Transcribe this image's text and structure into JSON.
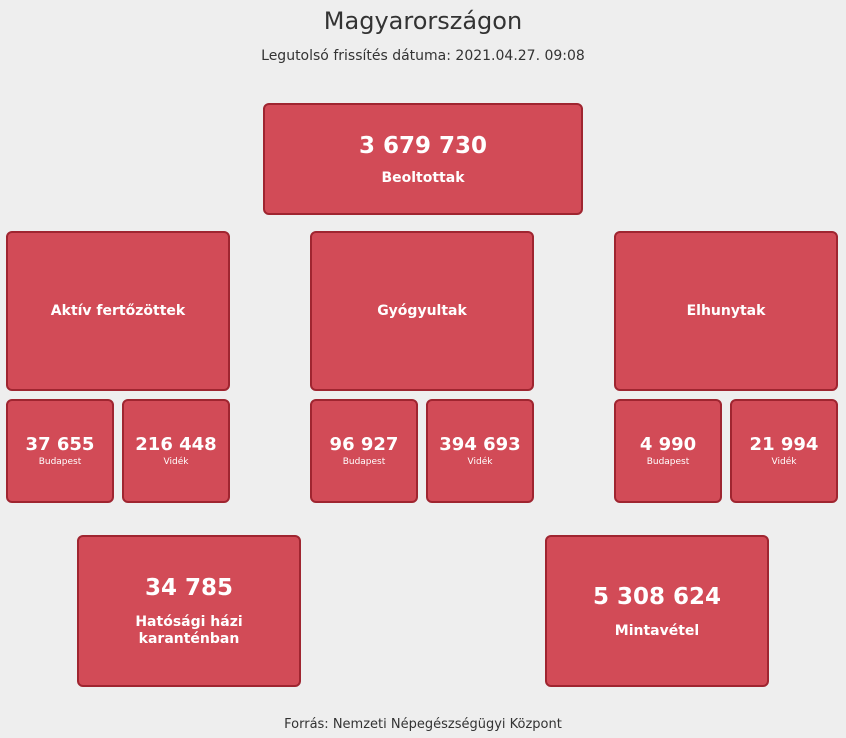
{
  "header": {
    "title": "Magyarországon",
    "updated": "Legutolsó frissítés dátuma: 2021.04.27. 09:08"
  },
  "vaccinated": {
    "value": "3 679 730",
    "label": "Beoltottak"
  },
  "categories": [
    {
      "label": "Aktív fertőzöttek",
      "budapest": {
        "value": "37 655",
        "label": "Budapest"
      },
      "countryside": {
        "value": "216 448",
        "label": "Vidék"
      }
    },
    {
      "label": "Gyógyultak",
      "budapest": {
        "value": "96 927",
        "label": "Budapest"
      },
      "countryside": {
        "value": "394 693",
        "label": "Vidék"
      }
    },
    {
      "label": "Elhunytak",
      "budapest": {
        "value": "4 990",
        "label": "Budapest"
      },
      "countryside": {
        "value": "21 994",
        "label": "Vidék"
      }
    }
  ],
  "quarantine": {
    "value": "34 785",
    "label": "Hatósági házi karanténban"
  },
  "sampling": {
    "value": "5 308 624",
    "label": "Mintavétel"
  },
  "footer": {
    "source": "Forrás: Nemzeti Népegészségügyi Központ"
  },
  "colors": {
    "box_fill": "#d24b57",
    "box_border": "#9f2530",
    "background": "#eeeeee"
  }
}
